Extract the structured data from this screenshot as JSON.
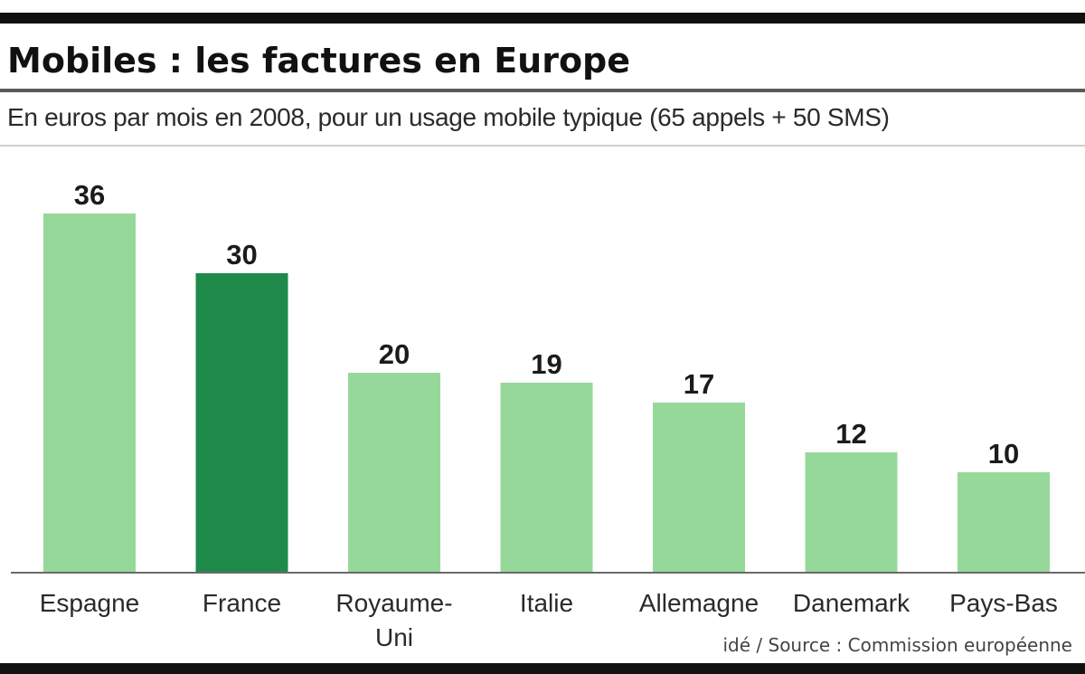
{
  "chart_data": {
    "type": "bar",
    "title": "Mobiles : les factures en Europe",
    "subtitle": "En euros par mois en 2008, pour un usage mobile typique (65 appels + 50 SMS)",
    "categories": [
      "Espagne",
      "France",
      "Royaume-Uni",
      "Italie",
      "Allemagne",
      "Danemark",
      "Pays-Bas"
    ],
    "category_lines": [
      [
        "Espagne"
      ],
      [
        "France"
      ],
      [
        "Royaume-",
        "Uni"
      ],
      [
        "Italie"
      ],
      [
        "Allemagne"
      ],
      [
        "Danemark"
      ],
      [
        "Pays-Bas"
      ]
    ],
    "values": [
      36,
      30,
      20,
      19,
      17,
      12,
      10
    ],
    "highlight": "France",
    "xlabel": "",
    "ylabel": "",
    "ylim": [
      0,
      36
    ],
    "grid": false,
    "colors": {
      "bar": "#96d89a",
      "highlight": "#1f8a4a",
      "axis": "#6a6a6a"
    },
    "source": "idé / Source : Commission européenne"
  }
}
